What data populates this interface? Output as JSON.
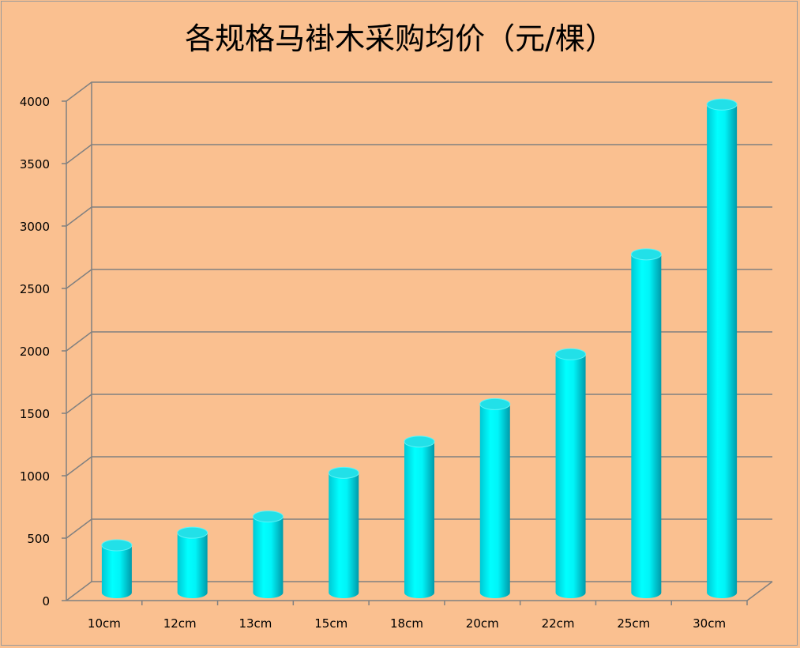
{
  "chart_data": {
    "type": "bar",
    "title": "各规格马褂木采购均价（元/棵）",
    "categories": [
      "10cm",
      "12cm",
      "13cm",
      "15cm",
      "18cm",
      "20cm",
      "22cm",
      "25cm",
      "30cm"
    ],
    "values": [
      380,
      480,
      610,
      960,
      1210,
      1510,
      1910,
      2710,
      3910
    ],
    "ylim": [
      0,
      4000
    ],
    "yticks": [
      0,
      500,
      1000,
      1500,
      2000,
      2500,
      3000,
      3500,
      4000
    ],
    "grid": true,
    "legend": "none",
    "style": "3d-cylinder"
  },
  "colors": {
    "background": "#FAC090",
    "bar": "#00FFFF",
    "bar_dark": "#009FAF",
    "grid": "#808080"
  }
}
